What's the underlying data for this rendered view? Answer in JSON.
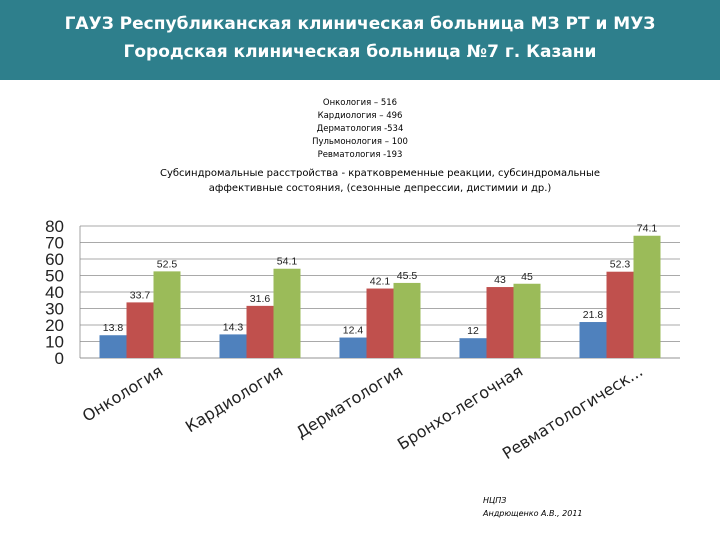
{
  "header": {
    "line1": "ГАУЗ Республиканская клиническая больница МЗ РТ и МУЗ",
    "line2": "Городская клиническая больница №7 г. Казани"
  },
  "notes": [
    "Онкология – 516",
    "Кардиология – 496",
    "Дерматология -534",
    "Пульмонология – 100",
    "Ревматология -193"
  ],
  "subtitle": {
    "line1": "Субсиндромальные расстройства - кратковременные реакции, субсиндромальные",
    "line2": "аффективные состояния, (сезонные депрессии, дистимии и др.)"
  },
  "source": {
    "line1": "НЦПЗ",
    "line2": "Андрющенко А.В., 2011"
  },
  "chart_data": {
    "type": "bar",
    "categories": [
      "Онкология",
      "Кардиология",
      "Дерматология",
      "Бронхо-легочная",
      "Ревматологическ..."
    ],
    "series": [
      {
        "values": [
          13.8,
          14.3,
          12.4,
          12,
          21.8
        ],
        "color": "#4f81bd"
      },
      {
        "values": [
          33.7,
          31.6,
          42.1,
          43,
          52.3
        ],
        "color": "#c0504d"
      },
      {
        "values": [
          52.5,
          54.1,
          45.5,
          45,
          74.1
        ],
        "color": "#9bbb59"
      }
    ],
    "value_labels": [
      [
        "13.8",
        "14.3",
        "12.4",
        "12",
        "21.8"
      ],
      [
        "33.7",
        "31.6",
        "42.1",
        "43",
        "52.3"
      ],
      [
        "52.5",
        "54.1",
        "45.5",
        "45",
        "74.1"
      ]
    ],
    "yticks": [
      "0",
      "10",
      "20",
      "30",
      "40",
      "50",
      "60",
      "70",
      "80"
    ],
    "ylim": [
      0,
      80
    ],
    "grid": true,
    "legend": "none"
  }
}
